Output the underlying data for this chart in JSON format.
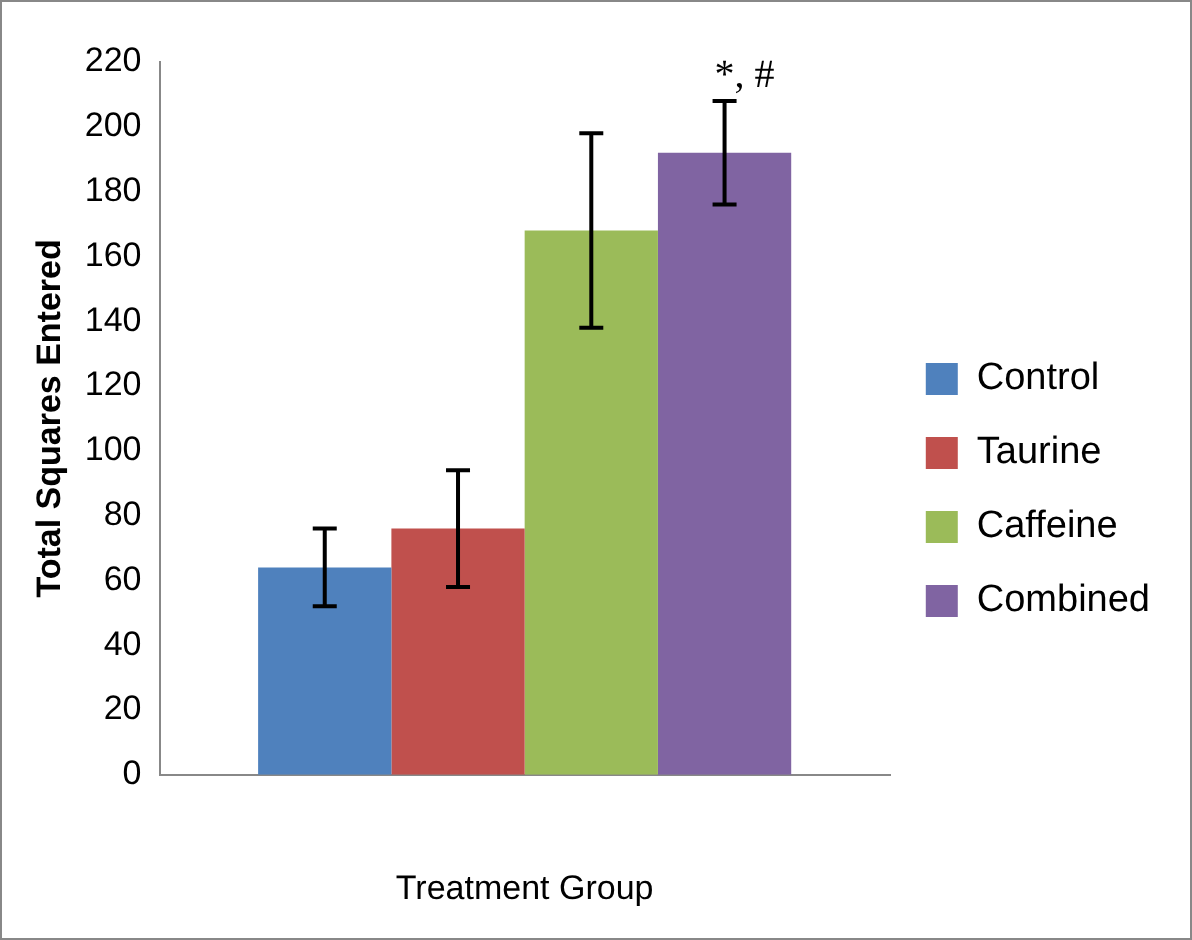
{
  "chart_data": {
    "type": "bar",
    "ylabel": "Total Squares Entered",
    "xlabel": "Treatment Group",
    "categories": [
      null
    ],
    "series": [
      {
        "name": "Control",
        "color": "#4f81bd",
        "values": [
          64
        ],
        "errors": [
          [
            52,
            76
          ]
        ]
      },
      {
        "name": "Taurine",
        "color": "#c0504d",
        "values": [
          76
        ],
        "errors": [
          [
            58,
            94
          ]
        ]
      },
      {
        "name": "Caffeine",
        "color": "#9bbb59",
        "values": [
          168
        ],
        "errors": [
          [
            138,
            198
          ]
        ]
      },
      {
        "name": "Combined",
        "color": "#8064a2",
        "values": [
          192
        ],
        "errors": [
          [
            176,
            208
          ]
        ]
      }
    ],
    "ylim": [
      0,
      220
    ],
    "yticks": [
      0,
      20,
      40,
      60,
      80,
      100,
      120,
      140,
      160,
      180,
      200,
      220
    ],
    "grid": false,
    "legend": "right",
    "annotations": [
      "*, #"
    ]
  }
}
